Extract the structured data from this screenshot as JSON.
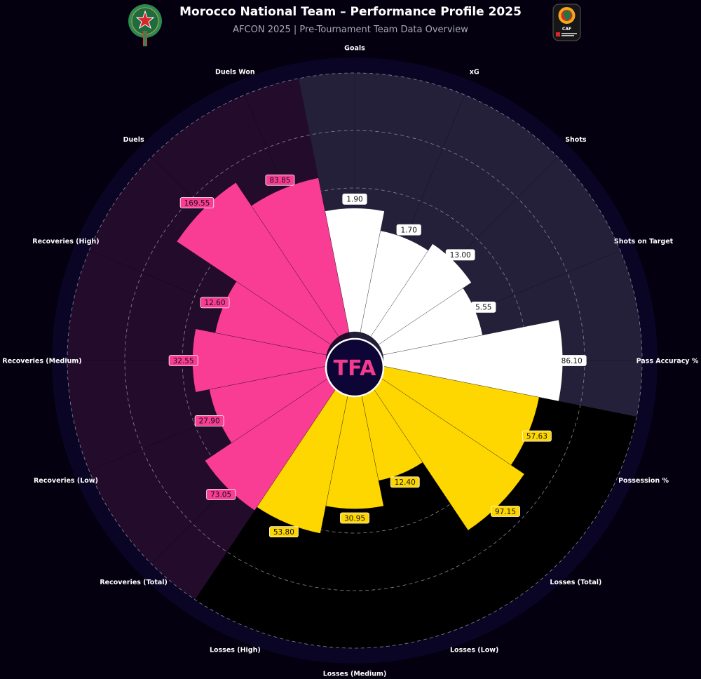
{
  "header": {
    "title": "Morocco National Team – Performance Profile 2025",
    "subtitle": "AFCON 2025 | Pre-Tournament Team Data Overview",
    "left_logo_icon": "morocco-federation-crest",
    "right_logo_icon": "caf-africa-cup-of-nations-logo",
    "right_logo_text": "CAF"
  },
  "center_logo": {
    "text": "TFA",
    "color": "#f23b8f"
  },
  "colors": {
    "attack": "#ffffff",
    "possession_losses": "#ffd700",
    "defense": "#f93d95",
    "attack_background": "#24203a",
    "losses_background": "#231c1c",
    "defense_background": "#230b2c",
    "page_background": "#04000f"
  },
  "chart_data": {
    "type": "polar-bar",
    "title": "Morocco National Team – Performance Profile 2025",
    "subtitle": "AFCON 2025 | Pre-Tournament Team Data Overview",
    "grid": true,
    "categories": [
      "Goals",
      "xG",
      "Shots",
      "Shots on Target",
      "Pass Accuracy %",
      "Possession %",
      "Losses (Total)",
      "Losses (Low)",
      "Losses (Medium)",
      "Losses (High)",
      "Recoveries (Total)",
      "Recoveries (Low)",
      "Recoveries (Medium)",
      "Recoveries (High)",
      "Duels",
      "Duels Won"
    ],
    "values": [
      1.9,
      1.7,
      13.0,
      5.55,
      86.1,
      57.63,
      97.15,
      12.4,
      30.95,
      53.8,
      73.05,
      27.9,
      32.55,
      12.6,
      169.55,
      83.85
    ],
    "value_labels": [
      "1.90",
      "1.70",
      "13.00",
      "5.55",
      "86.10",
      "57.63",
      "97.15",
      "12.40",
      "30.95",
      "53.80",
      "73.05",
      "27.90",
      "32.55",
      "12.60",
      "169.55",
      "83.85"
    ],
    "groups": [
      {
        "color_key": "attack",
        "categories": [
          "Goals",
          "xG",
          "Shots",
          "Shots on Target",
          "Pass Accuracy %"
        ]
      },
      {
        "color_key": "possession_losses",
        "categories": [
          "Possession %",
          "Losses (Total)",
          "Losses (Low)",
          "Losses (Medium)",
          "Losses (High)"
        ]
      },
      {
        "color_key": "defense",
        "categories": [
          "Recoveries (Total)",
          "Recoveries (Low)",
          "Recoveries (Medium)",
          "Recoveries (High)",
          "Duels",
          "Duels Won"
        ]
      }
    ],
    "relative_levels": [
      0.62,
      0.52,
      0.56,
      0.51,
      0.9,
      0.8,
      0.88,
      0.47,
      0.6,
      0.74,
      0.76,
      0.6,
      0.67,
      0.57,
      0.93,
      0.79
    ]
  }
}
